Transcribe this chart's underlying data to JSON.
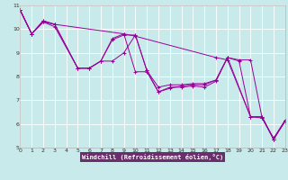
{
  "xlabel": "Windchill (Refroidissement éolien,°C)",
  "background_color": "#c8eaea",
  "plot_bg_color": "#c8eaea",
  "grid_color": "#ffffff",
  "line_color": "#990099",
  "xlabel_bg": "#6b2d6b",
  "xlabel_color": "#ffffff",
  "xlim": [
    0,
    23
  ],
  "ylim": [
    5,
    11
  ],
  "xticks": [
    0,
    1,
    2,
    3,
    4,
    5,
    6,
    7,
    8,
    9,
    10,
    11,
    12,
    13,
    14,
    15,
    16,
    17,
    18,
    19,
    20,
    21,
    22,
    23
  ],
  "yticks": [
    5,
    6,
    7,
    8,
    9,
    10,
    11
  ],
  "lines": [
    {
      "x": [
        0,
        1,
        2,
        3,
        9,
        10,
        17,
        18,
        20,
        21,
        22,
        23
      ],
      "y": [
        10.8,
        9.8,
        10.35,
        10.2,
        9.8,
        9.7,
        8.8,
        8.7,
        6.3,
        6.3,
        5.35,
        6.15
      ]
    },
    {
      "x": [
        0,
        1,
        2,
        3,
        5,
        6,
        7,
        8,
        9,
        10,
        11,
        12,
        13,
        14,
        15,
        16,
        17,
        18,
        20,
        21,
        22,
        23
      ],
      "y": [
        10.8,
        9.8,
        10.35,
        10.2,
        8.35,
        8.35,
        8.65,
        9.6,
        9.8,
        8.2,
        8.2,
        7.35,
        7.55,
        7.55,
        7.6,
        7.55,
        7.8,
        8.8,
        6.3,
        6.3,
        5.35,
        6.15
      ]
    },
    {
      "x": [
        0,
        1,
        2,
        3,
        5,
        6,
        7,
        8,
        9,
        10,
        11,
        12,
        13,
        14,
        15,
        16,
        17,
        18,
        19,
        20,
        21,
        22,
        23
      ],
      "y": [
        10.8,
        9.8,
        10.3,
        10.1,
        8.35,
        8.35,
        8.65,
        9.55,
        9.75,
        9.75,
        8.25,
        7.55,
        7.65,
        7.65,
        7.7,
        7.7,
        7.85,
        8.8,
        8.7,
        8.7,
        6.25,
        5.35,
        6.1
      ]
    },
    {
      "x": [
        0,
        1,
        2,
        3,
        5,
        6,
        7,
        8,
        9,
        10,
        11,
        12,
        13,
        14,
        15,
        16,
        17,
        18,
        19,
        20,
        21,
        22,
        23
      ],
      "y": [
        10.8,
        9.8,
        10.3,
        10.2,
        8.35,
        8.35,
        8.65,
        8.65,
        9.0,
        9.75,
        8.25,
        7.35,
        7.5,
        7.6,
        7.65,
        7.65,
        7.85,
        8.8,
        8.65,
        6.3,
        6.25,
        5.4,
        6.15
      ]
    }
  ]
}
